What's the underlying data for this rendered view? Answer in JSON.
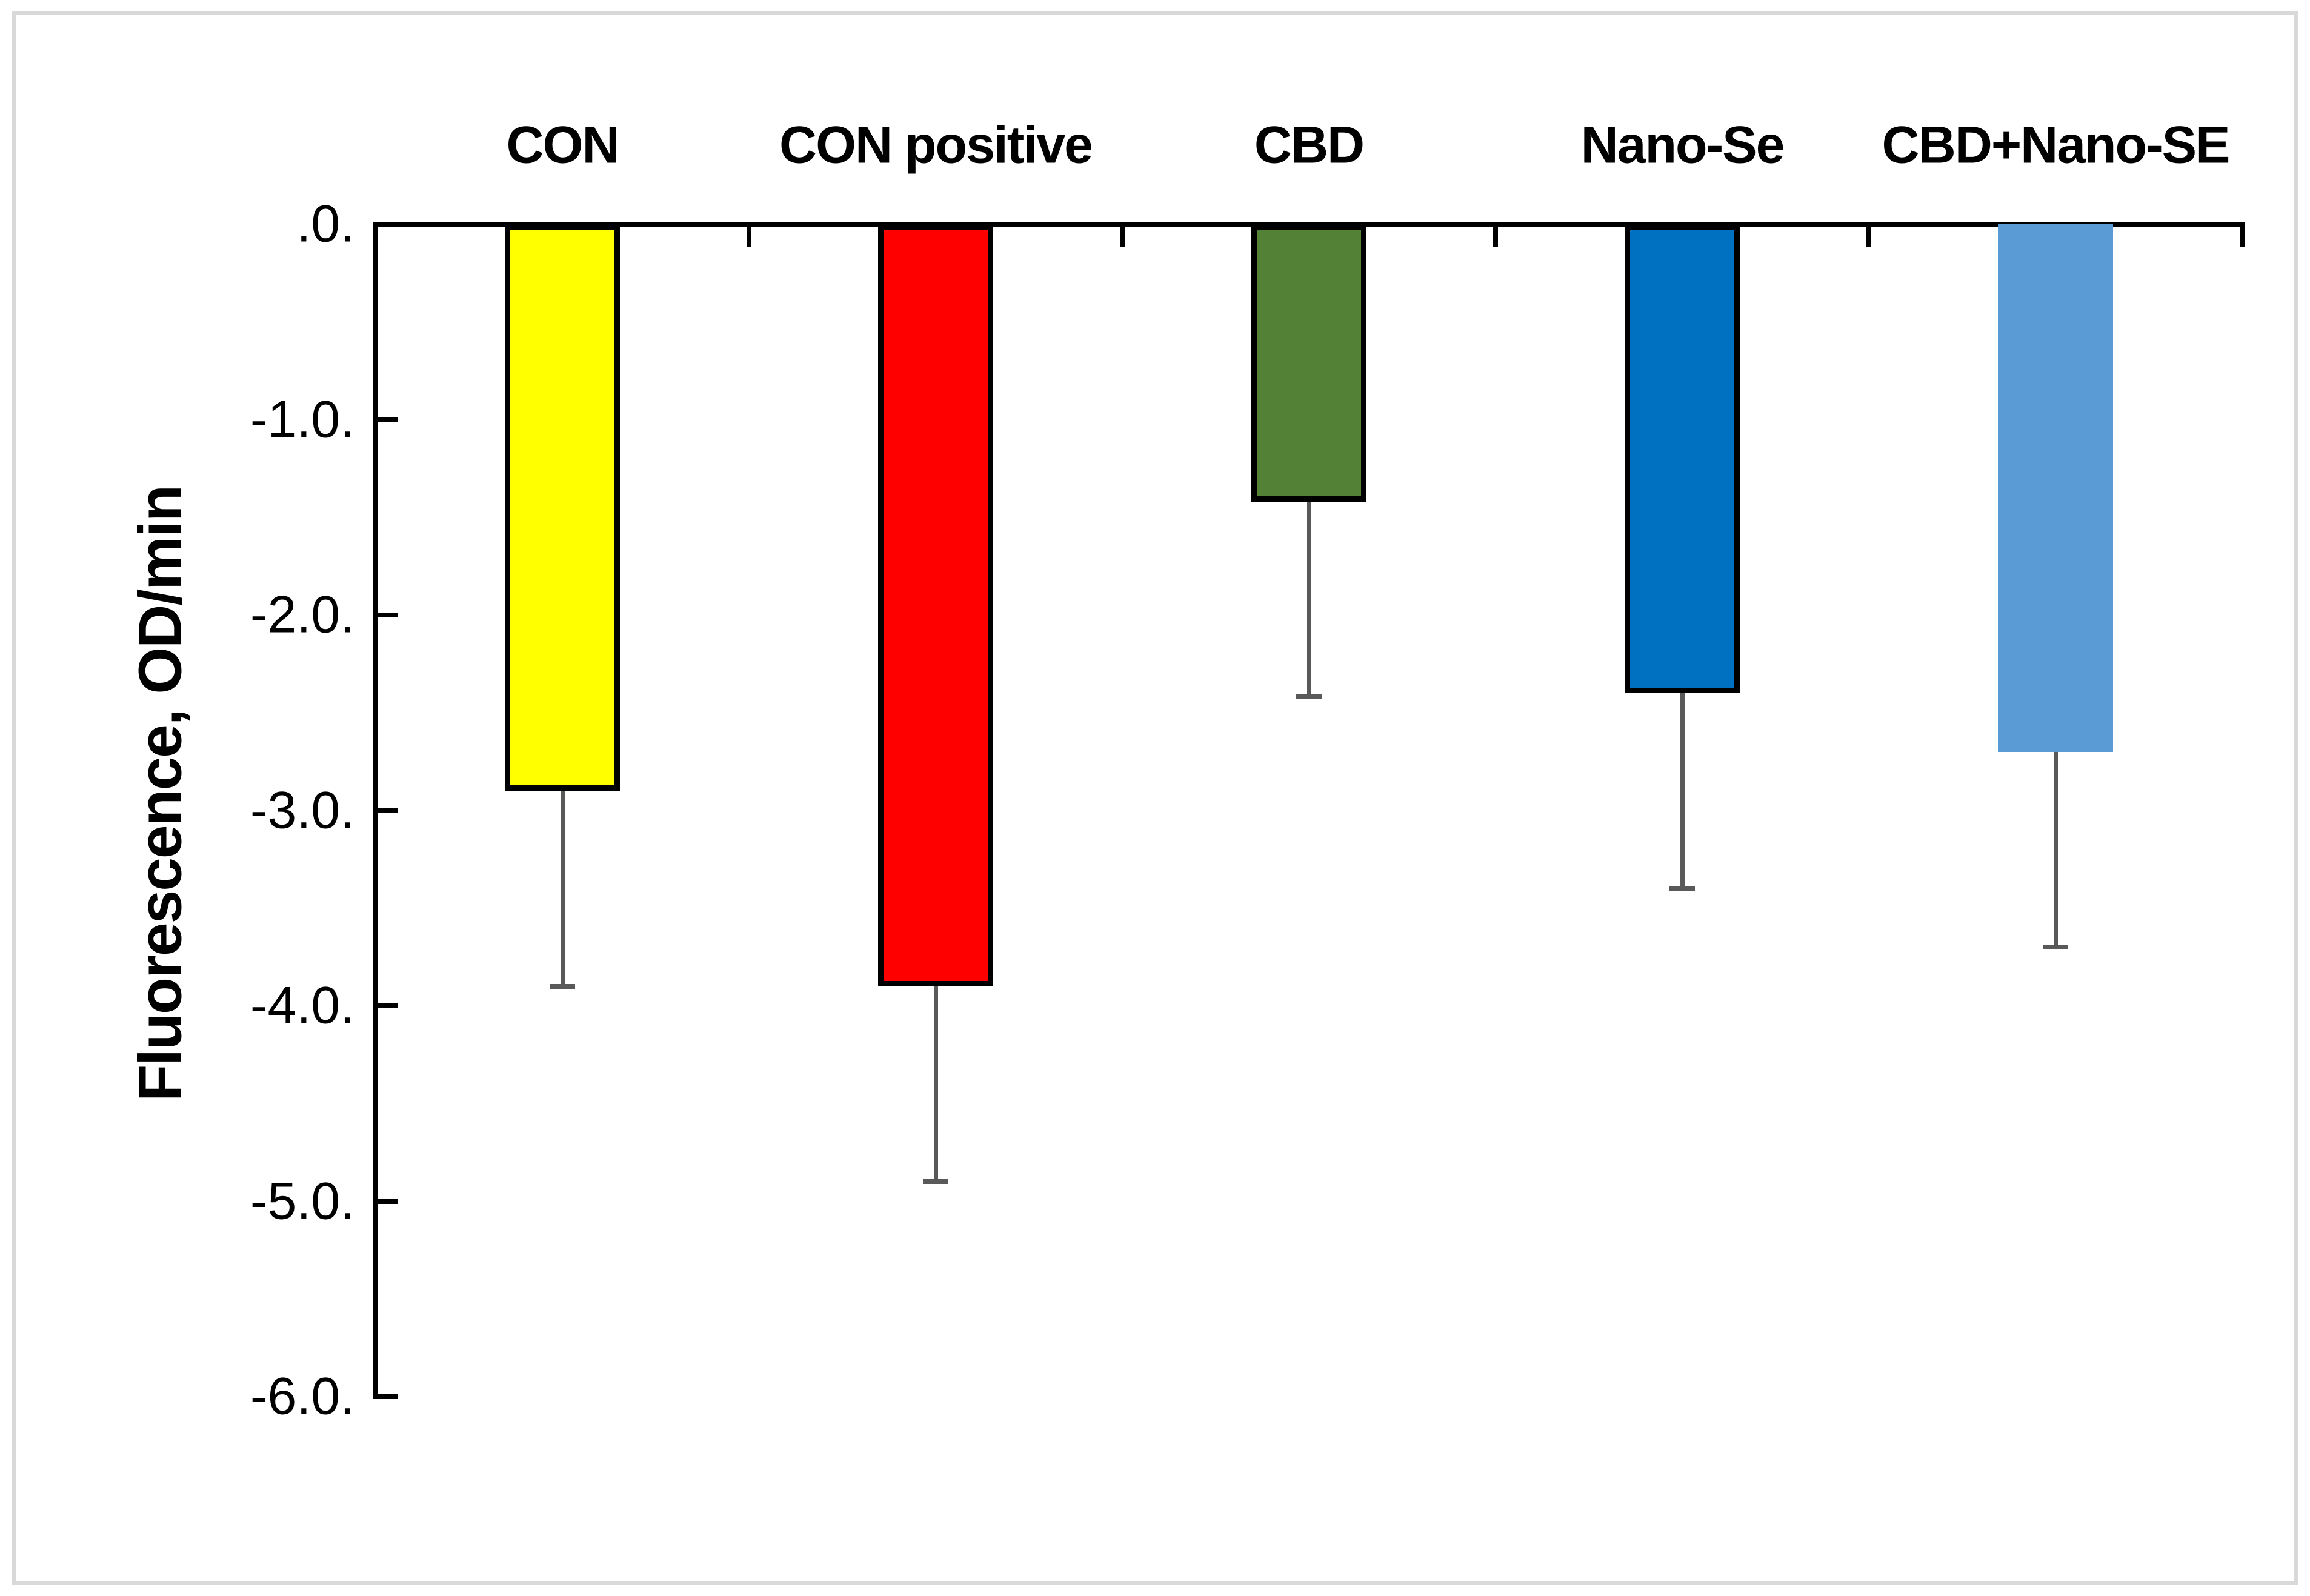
{
  "frame": {
    "border_color": "#d9d9d9",
    "background": "#ffffff"
  },
  "chart_data": {
    "type": "bar",
    "orientation": "vertical-negative",
    "title": "",
    "categories": [
      "CON",
      "CON positive",
      "CBD",
      "Nano-Se",
      "CBD+Nano-SE"
    ],
    "values": [
      -2.9,
      -3.9,
      -1.42,
      -2.4,
      -2.7
    ],
    "errors": [
      1.0,
      1.0,
      1.0,
      1.0,
      1.0
    ],
    "error_direction": "minus",
    "bar_fill_colors": [
      "#FFFF00",
      "#FF0000",
      "#538135",
      "#0070C0",
      "#5B9BD5"
    ],
    "bar_border_colors": [
      "#000000",
      "#000000",
      "#000000",
      "#000000",
      "none"
    ],
    "error_bar_color": "#595959",
    "axis_line_color": "#000000",
    "ylabel": "Fluorescence, OD/min",
    "xlabel": "",
    "ylim": [
      0,
      -6
    ],
    "ytick_values": [
      0,
      -1,
      -2,
      -3,
      -4,
      -5,
      -6
    ],
    "ytick_labels": [
      ".0.",
      "-1.0.",
      "-2.0.",
      "-3.0.",
      "-4.0.",
      "-5.0.",
      "-6.0."
    ],
    "category_label_position": "top",
    "grid": "off",
    "legend": "none"
  }
}
